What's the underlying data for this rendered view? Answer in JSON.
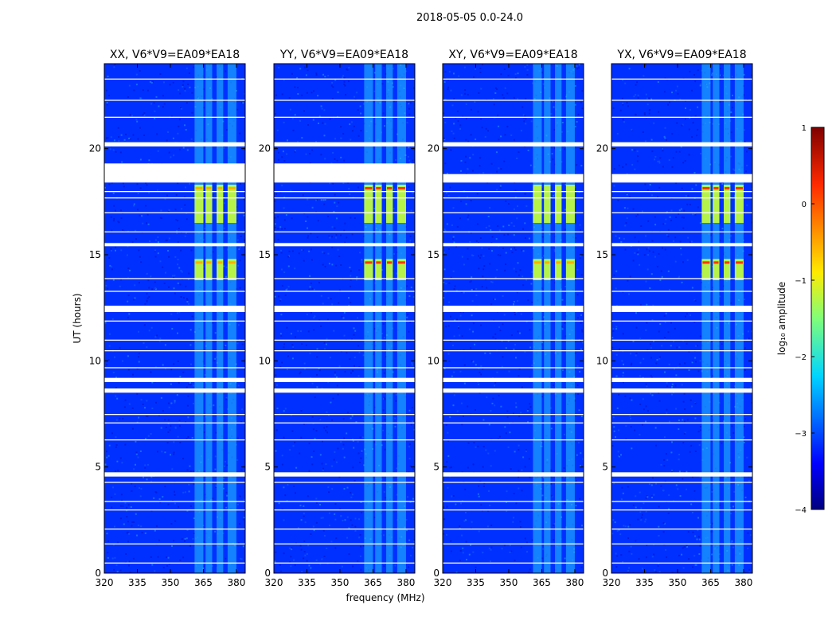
{
  "figure_title": "2018-05-05 0.0-24.0",
  "colors": {
    "low": "#00007f",
    "mid_low": "#0030ff",
    "mid": "#00e0ff",
    "mid_high": "#c8ff36",
    "high": "#ff3800",
    "top": "#7f0000",
    "flag": "#ffffff",
    "axis": "#000000"
  },
  "chart_data": [
    {
      "type": "heatmap",
      "title": "XX, V6*V9=EA09*EA18",
      "xlabel": "",
      "ylabel": "UT (hours)",
      "xlim": [
        320,
        384
      ],
      "ylim": [
        0,
        24
      ],
      "x_ticks": [
        320,
        335,
        350,
        365,
        380
      ],
      "y_ticks": [
        0,
        5,
        10,
        15,
        20
      ],
      "x_tick_labels": [
        "320",
        "335",
        "350",
        "365",
        "380"
      ],
      "y_tick_labels": [
        "0",
        "5",
        "10",
        "15",
        "20"
      ],
      "rfi_bands_mhz": [
        [
          361,
          365
        ],
        [
          366,
          369
        ],
        [
          371,
          374
        ],
        [
          376,
          380
        ]
      ],
      "bright_events_hours": [
        [
          13.8,
          14.8
        ],
        [
          16.5,
          18.3
        ]
      ],
      "flagged_hours": [
        [
          4.55,
          4.75
        ],
        [
          8.5,
          8.7
        ],
        [
          9.0,
          9.2
        ],
        [
          12.3,
          12.6
        ],
        [
          15.4,
          15.55
        ],
        [
          18.4,
          19.3
        ],
        [
          20.1,
          20.3
        ]
      ]
    },
    {
      "type": "heatmap",
      "title": "YY, V6*V9=EA09*EA18",
      "xlabel": "frequency (MHz)",
      "ylabel": "",
      "xlim": [
        320,
        384
      ],
      "ylim": [
        0,
        24
      ],
      "x_ticks": [
        320,
        335,
        350,
        365,
        380
      ],
      "y_ticks": [
        0,
        5,
        10,
        15,
        20
      ],
      "x_tick_labels": [
        "320",
        "335",
        "350",
        "365",
        "380"
      ],
      "y_tick_labels": [
        "0",
        "5",
        "10",
        "15",
        "20"
      ],
      "rfi_bands_mhz": [
        [
          361,
          365
        ],
        [
          366,
          369
        ],
        [
          371,
          374
        ],
        [
          376,
          380
        ]
      ],
      "bright_events_hours": [
        [
          13.8,
          14.8
        ],
        [
          16.5,
          18.3
        ]
      ],
      "flagged_hours": [
        [
          4.55,
          4.75
        ],
        [
          8.5,
          8.7
        ],
        [
          9.0,
          9.2
        ],
        [
          12.3,
          12.6
        ],
        [
          15.4,
          15.55
        ],
        [
          18.4,
          19.3
        ],
        [
          20.1,
          20.3
        ]
      ]
    },
    {
      "type": "heatmap",
      "title": "XY, V6*V9=EA09*EA18",
      "xlabel": "",
      "ylabel": "",
      "xlim": [
        320,
        384
      ],
      "ylim": [
        0,
        24
      ],
      "x_ticks": [
        320,
        335,
        350,
        365,
        380
      ],
      "y_ticks": [
        0,
        5,
        10,
        15,
        20
      ],
      "x_tick_labels": [
        "320",
        "335",
        "350",
        "365",
        "380"
      ],
      "y_tick_labels": [
        "0",
        "5",
        "10",
        "15",
        "20"
      ],
      "rfi_bands_mhz": [
        [
          361,
          365
        ],
        [
          366,
          369
        ],
        [
          371,
          374
        ],
        [
          376,
          380
        ]
      ],
      "bright_events_hours": [
        [
          13.8,
          14.8
        ],
        [
          16.5,
          18.3
        ]
      ],
      "flagged_hours": [
        [
          4.55,
          4.75
        ],
        [
          8.5,
          8.7
        ],
        [
          9.0,
          9.2
        ],
        [
          12.3,
          12.6
        ],
        [
          15.4,
          15.55
        ],
        [
          18.4,
          18.8
        ],
        [
          20.1,
          20.3
        ]
      ]
    },
    {
      "type": "heatmap",
      "title": "YX, V6*V9=EA09*EA18",
      "xlabel": "",
      "ylabel": "",
      "xlim": [
        320,
        384
      ],
      "ylim": [
        0,
        24
      ],
      "x_ticks": [
        320,
        335,
        350,
        365,
        380
      ],
      "y_ticks": [
        0,
        5,
        10,
        15,
        20
      ],
      "x_tick_labels": [
        "320",
        "335",
        "350",
        "365",
        "380"
      ],
      "y_tick_labels": [
        "0",
        "5",
        "10",
        "15",
        "20"
      ],
      "rfi_bands_mhz": [
        [
          361,
          365
        ],
        [
          366,
          369
        ],
        [
          371,
          374
        ],
        [
          376,
          380
        ]
      ],
      "bright_events_hours": [
        [
          13.8,
          14.8
        ],
        [
          16.5,
          18.3
        ]
      ],
      "flagged_hours": [
        [
          4.55,
          4.75
        ],
        [
          8.5,
          8.7
        ],
        [
          9.0,
          9.2
        ],
        [
          12.3,
          12.6
        ],
        [
          15.4,
          15.55
        ],
        [
          18.4,
          18.8
        ],
        [
          20.1,
          20.3
        ]
      ]
    }
  ],
  "colorbar": {
    "label": "log₁₀ amplitude",
    "range": [
      -4,
      1
    ],
    "ticks": [
      1,
      0,
      -1,
      -2,
      -3,
      -4
    ],
    "tick_labels": [
      "1",
      "0",
      "−1",
      "−2",
      "−3",
      "−4"
    ]
  }
}
